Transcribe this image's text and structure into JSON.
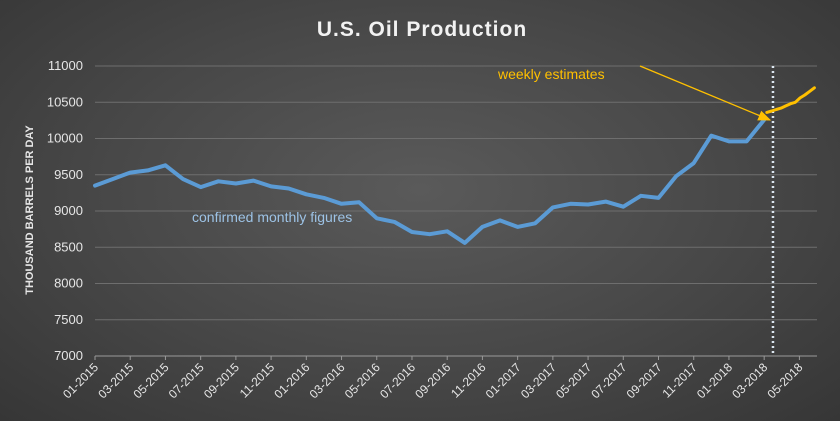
{
  "chart_data": {
    "type": "line",
    "title": "U.S. Oil Production",
    "ylabel": "THOUSAND BARRELS PER DAY",
    "xlabel": "",
    "ylim": [
      7000,
      11000
    ],
    "yticks": [
      7000,
      7500,
      8000,
      8500,
      9000,
      9500,
      10000,
      10500,
      11000
    ],
    "grid": true,
    "x_tick_labels": [
      "01-2015",
      "03-2015",
      "05-2015",
      "07-2015",
      "09-2015",
      "11-2015",
      "01-2016",
      "03-2016",
      "05-2016",
      "07-2016",
      "09-2016",
      "11-2016",
      "01-2017",
      "03-2017",
      "05-2017",
      "07-2017",
      "09-2017",
      "11-2017",
      "01-2018",
      "03-2018",
      "05-2018"
    ],
    "series": [
      {
        "color": "#5b9bd5",
        "x": [
          "01-2015",
          "02-2015",
          "03-2015",
          "04-2015",
          "05-2015",
          "06-2015",
          "07-2015",
          "08-2015",
          "09-2015",
          "10-2015",
          "11-2015",
          "12-2015",
          "01-2016",
          "02-2016",
          "03-2016",
          "04-2016",
          "05-2016",
          "06-2016",
          "07-2016",
          "08-2016",
          "09-2016",
          "10-2016",
          "11-2016",
          "12-2016",
          "01-2017",
          "02-2017",
          "03-2017",
          "04-2017",
          "05-2017",
          "06-2017",
          "07-2017",
          "08-2017",
          "09-2017",
          "10-2017",
          "11-2017",
          "12-2017",
          "01-2018",
          "02-2018",
          "03-2018"
        ],
        "values": [
          9350,
          9440,
          9530,
          9560,
          9630,
          9440,
          9330,
          9410,
          9380,
          9420,
          9340,
          9310,
          9230,
          9180,
          9100,
          9120,
          8900,
          8850,
          8710,
          8680,
          8720,
          8560,
          8780,
          8870,
          8780,
          8830,
          9050,
          9100,
          9090,
          9130,
          9060,
          9210,
          9180,
          9480,
          9660,
          10040,
          9960,
          9960,
          10260
        ]
      },
      {
        "color": "#ffc000",
        "x": [
          "03-2018",
          "04-2018",
          "05-2018"
        ],
        "values": [
          10360,
          10480,
          10700
        ],
        "x_index": [
          38.15,
          39.4,
          40.85
        ],
        "weekly": [
          10360,
          10380,
          10400,
          10420,
          10450,
          10480,
          10500,
          10560,
          10600,
          10650,
          10700
        ]
      }
    ],
    "divider_x": "03-2018",
    "annotations": {
      "monthly": "confirmed monthly figures",
      "weekly": "weekly estimates"
    }
  }
}
